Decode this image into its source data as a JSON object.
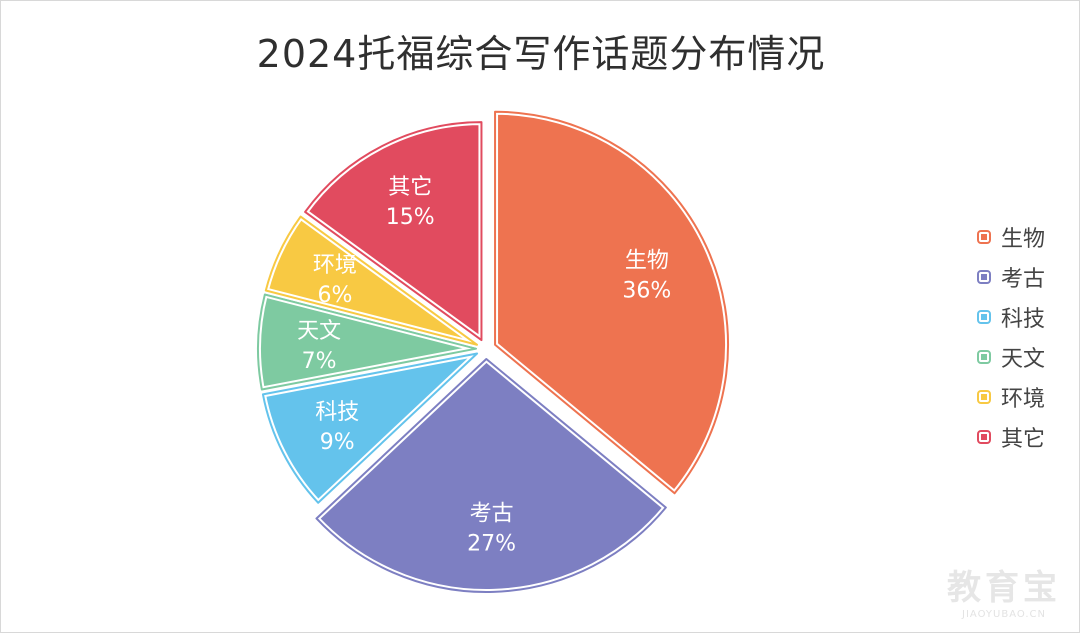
{
  "chart_data": {
    "type": "pie",
    "title": "2024托福综合写作话题分布情况",
    "categories": [
      "生物",
      "考古",
      "科技",
      "天文",
      "环境",
      "其它"
    ],
    "values": [
      36,
      27,
      9,
      7,
      6,
      15
    ],
    "value_labels": [
      "36%",
      "27%",
      "9%",
      "7%",
      "6%",
      "15%"
    ],
    "colors": [
      "#EE7350",
      "#7D7FC2",
      "#64C3EC",
      "#7ECAA1",
      "#F8C943",
      "#E14B5F"
    ],
    "legend_position": "right",
    "start_angle_deg": 0,
    "direction": "clockwise",
    "exploded": true
  },
  "watermark": {
    "text": "教育宝",
    "subtext": "JIAOYUBAO.CN"
  }
}
